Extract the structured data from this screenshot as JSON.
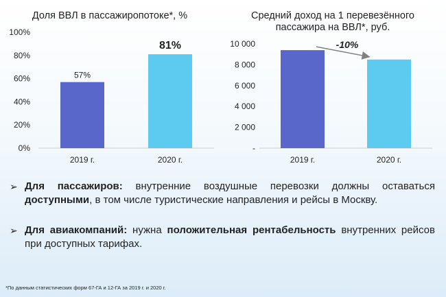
{
  "chart_data": [
    {
      "type": "bar",
      "title": "Доля ВВЛ в пассажиропотоке*, %",
      "categories": [
        "2019 г.",
        "2020 г."
      ],
      "values": [
        57,
        81
      ],
      "data_labels": [
        "57%",
        "81%"
      ],
      "yticks": [
        "0%",
        "20%",
        "40%",
        "60%",
        "80%",
        "100%"
      ],
      "ylim": [
        0,
        100
      ],
      "colors": [
        "#5867c9",
        "#5ccbef"
      ],
      "grid": false
    },
    {
      "type": "bar",
      "title": "Средний доход на 1 перевезённого пассажира на ВВЛ*, руб.",
      "title_lines": [
        "Средний доход на 1 перевезённого",
        "пассажира на ВВЛ*, руб."
      ],
      "categories": [
        "2019 г.",
        "2020 г."
      ],
      "values": [
        9400,
        8500
      ],
      "yticks": [
        "-",
        "2 000",
        "4 000",
        "6 000",
        "8 000",
        "10 000"
      ],
      "ylim": [
        0,
        10000
      ],
      "colors": [
        "#5867c9",
        "#5ccbef"
      ],
      "annotation": "-10%",
      "grid": false
    }
  ],
  "bullets": [
    {
      "parts": [
        {
          "text": "Для пассажиров:",
          "bold": true
        },
        {
          "text": " внутренние воздушные перевозки должны оставаться ",
          "bold": false
        },
        {
          "text": "доступными",
          "bold": true
        },
        {
          "text": ", в том числе туристические направления и рейсы в Москву.",
          "bold": false
        }
      ]
    },
    {
      "parts": [
        {
          "text": "Для авиакомпаний:",
          "bold": true
        },
        {
          "text": " нужна ",
          "bold": false
        },
        {
          "text": "положительная рентабельность",
          "bold": true
        },
        {
          "text": " внутренних рейсов при доступных тарифах.",
          "bold": false
        }
      ]
    }
  ],
  "footnote": "*По данным статистических форм 67-ГА и 12-ГА за 2019 г. и 2020 г."
}
